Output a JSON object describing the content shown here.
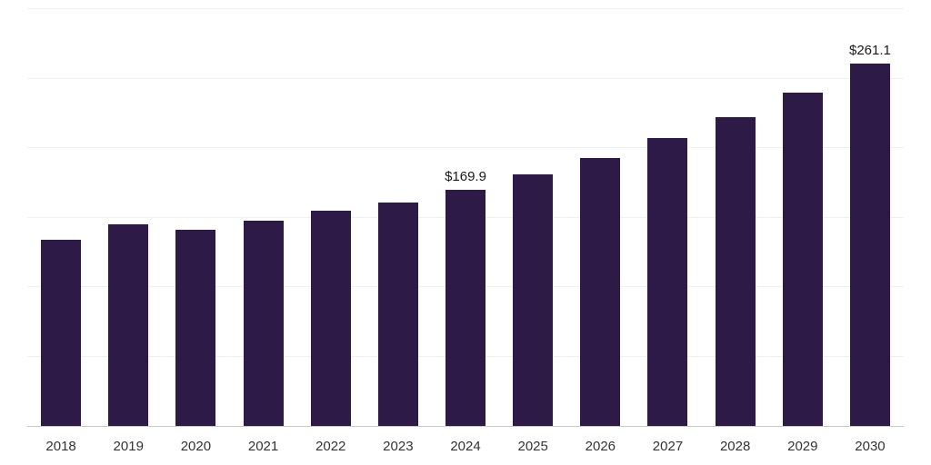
{
  "chart_data": {
    "type": "bar",
    "title": "",
    "xlabel": "",
    "ylabel": "",
    "categories": [
      "2018",
      "2019",
      "2020",
      "2021",
      "2022",
      "2023",
      "2024",
      "2025",
      "2026",
      "2027",
      "2028",
      "2029",
      "2030"
    ],
    "values": [
      134,
      145,
      141,
      147.5,
      155,
      160.5,
      169.9,
      181,
      193,
      207,
      222,
      240,
      261.1
    ],
    "point_labels": [
      null,
      null,
      null,
      null,
      null,
      null,
      "$169.9",
      null,
      null,
      null,
      null,
      null,
      "$261.1"
    ],
    "ylim": [
      0,
      300
    ],
    "gridline_values": [
      50,
      100,
      150,
      200,
      250,
      300
    ],
    "grid": "horizontal-faint",
    "legend": "none",
    "colors": {
      "bar": "#2e1a47",
      "point_label": "#1a1a1a",
      "axis_text": "#333333",
      "gridline": "#f0f0f0",
      "baseline": "#c9c9c9",
      "background": "#ffffff"
    }
  }
}
